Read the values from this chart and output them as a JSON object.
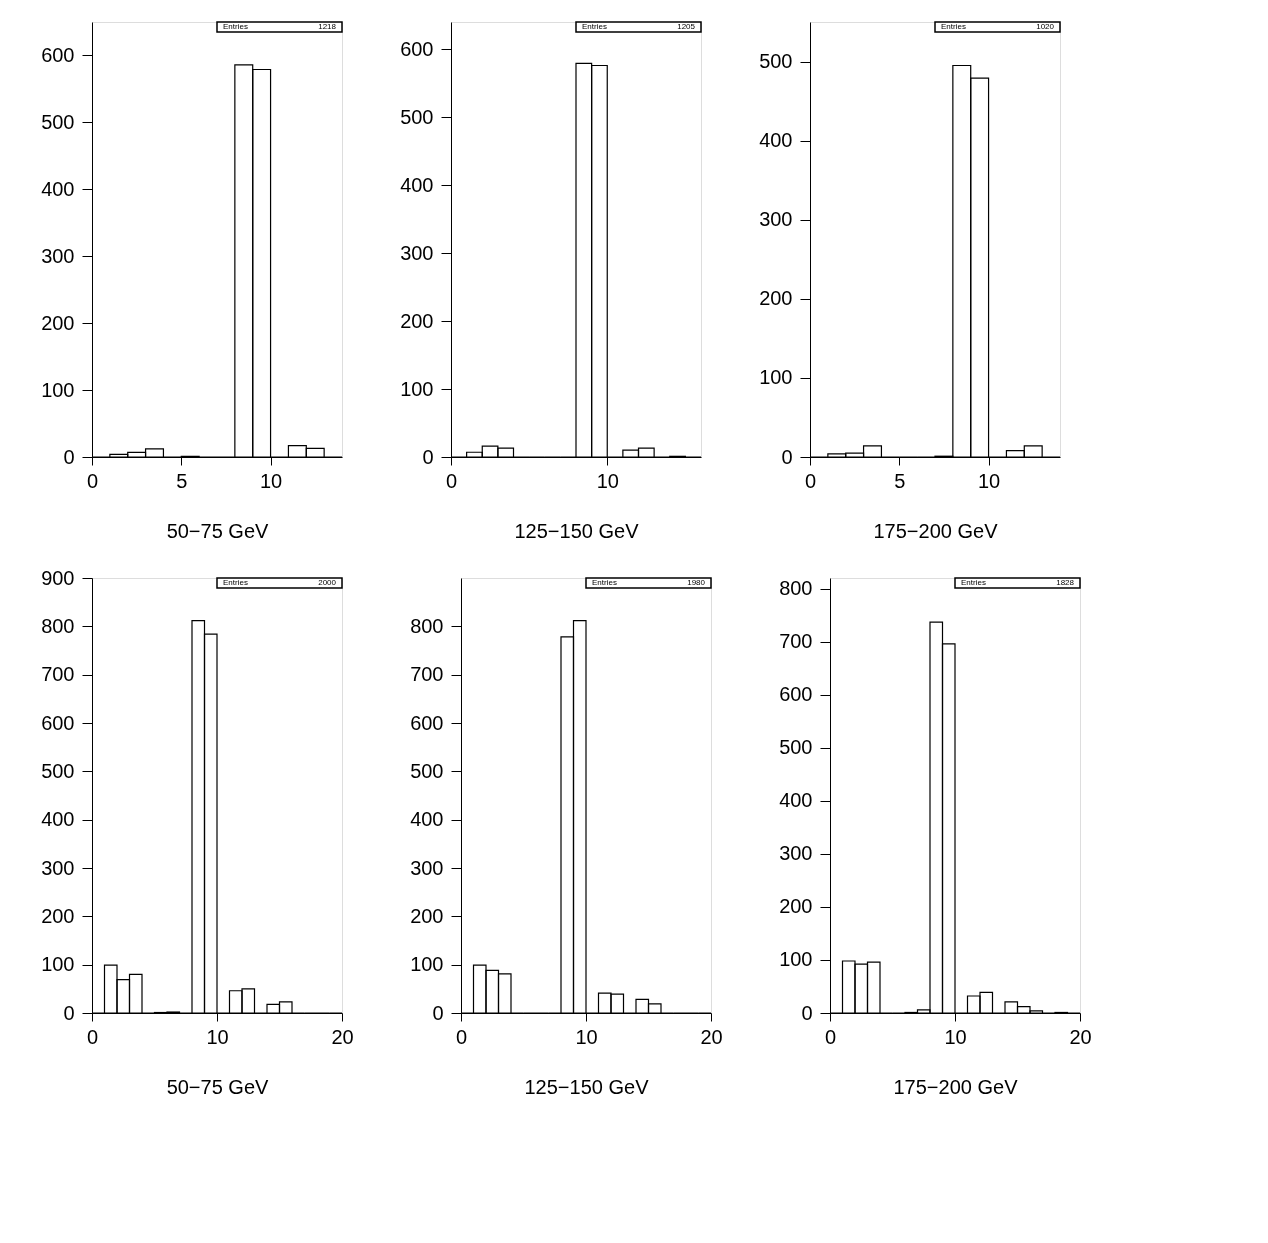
{
  "chart_data": [
    {
      "type": "histogram",
      "xlabel": "50−75 GeV",
      "bins": [
        0,
        1,
        2,
        3,
        4,
        5,
        6,
        7,
        8,
        9,
        10,
        11,
        12,
        13,
        14
      ],
      "values": [
        0,
        4,
        7,
        12,
        0,
        1,
        0,
        0,
        586,
        579,
        0,
        17,
        13,
        0
      ],
      "color": "#000000",
      "xlim": [
        0,
        14
      ],
      "xticks": [
        0,
        5,
        10
      ],
      "ylim": [
        0,
        650
      ],
      "yticks": [
        0,
        100,
        200,
        300,
        400,
        500,
        600
      ],
      "grid": false,
      "annotations": [
        "Entries",
        "1218"
      ]
    },
    {
      "type": "histogram",
      "xlabel": "125−150 GeV",
      "bins": [
        0,
        1,
        2,
        3,
        4,
        5,
        6,
        7,
        8,
        9,
        10,
        11,
        12,
        13,
        14,
        15,
        16
      ],
      "values": [
        0,
        7,
        16,
        13,
        0,
        0,
        0,
        0,
        579,
        576,
        0,
        10,
        13,
        0,
        1,
        0
      ],
      "color": "#000000",
      "xlim": [
        0,
        16
      ],
      "xticks": [
        0,
        10
      ],
      "ylim": [
        0,
        640
      ],
      "yticks": [
        0,
        100,
        200,
        300,
        400,
        500,
        600
      ],
      "grid": false,
      "annotations": [
        "Entries",
        "1205"
      ]
    },
    {
      "type": "histogram",
      "xlabel": "175−200 GeV",
      "bins": [
        0,
        1,
        2,
        3,
        4,
        5,
        6,
        7,
        8,
        9,
        10,
        11,
        12,
        13,
        14
      ],
      "values": [
        0,
        4,
        5,
        14,
        0,
        0,
        0,
        1,
        495,
        479,
        0,
        8,
        14,
        0
      ],
      "color": "#000000",
      "xlim": [
        0,
        14
      ],
      "xticks": [
        0,
        5,
        10
      ],
      "ylim": [
        0,
        550
      ],
      "yticks": [
        0,
        100,
        200,
        300,
        400,
        500
      ],
      "grid": false,
      "annotations": [
        "Entries",
        "1020"
      ]
    },
    {
      "type": "histogram",
      "xlabel": "50−75 GeV",
      "bins": [
        0,
        1,
        2,
        3,
        4,
        5,
        6,
        7,
        8,
        9,
        10,
        11,
        12,
        13,
        14,
        15,
        16,
        17,
        18,
        19,
        20
      ],
      "values": [
        0,
        99,
        69,
        80,
        0,
        1,
        2,
        0,
        812,
        784,
        0,
        46,
        50,
        0,
        18,
        23,
        0,
        0,
        0,
        0
      ],
      "color": "#000000",
      "xlim": [
        0,
        20
      ],
      "xticks": [
        0,
        10,
        20
      ],
      "ylim": [
        0,
        900
      ],
      "yticks": [
        0,
        100,
        200,
        300,
        400,
        500,
        600,
        700,
        800,
        900
      ],
      "grid": false,
      "annotations": [
        "Entries",
        "2000"
      ]
    },
    {
      "type": "histogram",
      "xlabel": "125−150 GeV",
      "bins": [
        0,
        1,
        2,
        3,
        4,
        5,
        6,
        7,
        8,
        9,
        10,
        11,
        12,
        13,
        14,
        15,
        16,
        17,
        18,
        19,
        20
      ],
      "values": [
        0,
        99,
        88,
        81,
        0,
        0,
        0,
        0,
        778,
        812,
        0,
        41,
        39,
        0,
        28,
        19,
        0,
        0,
        0,
        0
      ],
      "color": "#000000",
      "xlim": [
        0,
        20
      ],
      "xticks": [
        0,
        10,
        20
      ],
      "ylim": [
        0,
        900
      ],
      "yticks": [
        0,
        100,
        200,
        300,
        400,
        500,
        600,
        700,
        800
      ],
      "grid": false,
      "annotations": [
        "Entries",
        "1980"
      ]
    },
    {
      "type": "histogram",
      "xlabel": "175−200 GeV",
      "bins": [
        0,
        1,
        2,
        3,
        4,
        5,
        6,
        7,
        8,
        9,
        10,
        11,
        12,
        13,
        14,
        15,
        16,
        17,
        18,
        19,
        20
      ],
      "values": [
        0,
        98,
        92,
        96,
        0,
        0,
        1,
        6,
        737,
        696,
        0,
        32,
        39,
        0,
        21,
        12,
        4,
        0,
        1,
        0
      ],
      "color": "#000000",
      "xlim": [
        0,
        20
      ],
      "xticks": [
        0,
        10,
        20
      ],
      "ylim": [
        0,
        820
      ],
      "yticks": [
        0,
        100,
        200,
        300,
        400,
        500,
        600,
        700,
        800
      ],
      "grid": false,
      "annotations": [
        "Entries",
        "1828"
      ]
    }
  ]
}
